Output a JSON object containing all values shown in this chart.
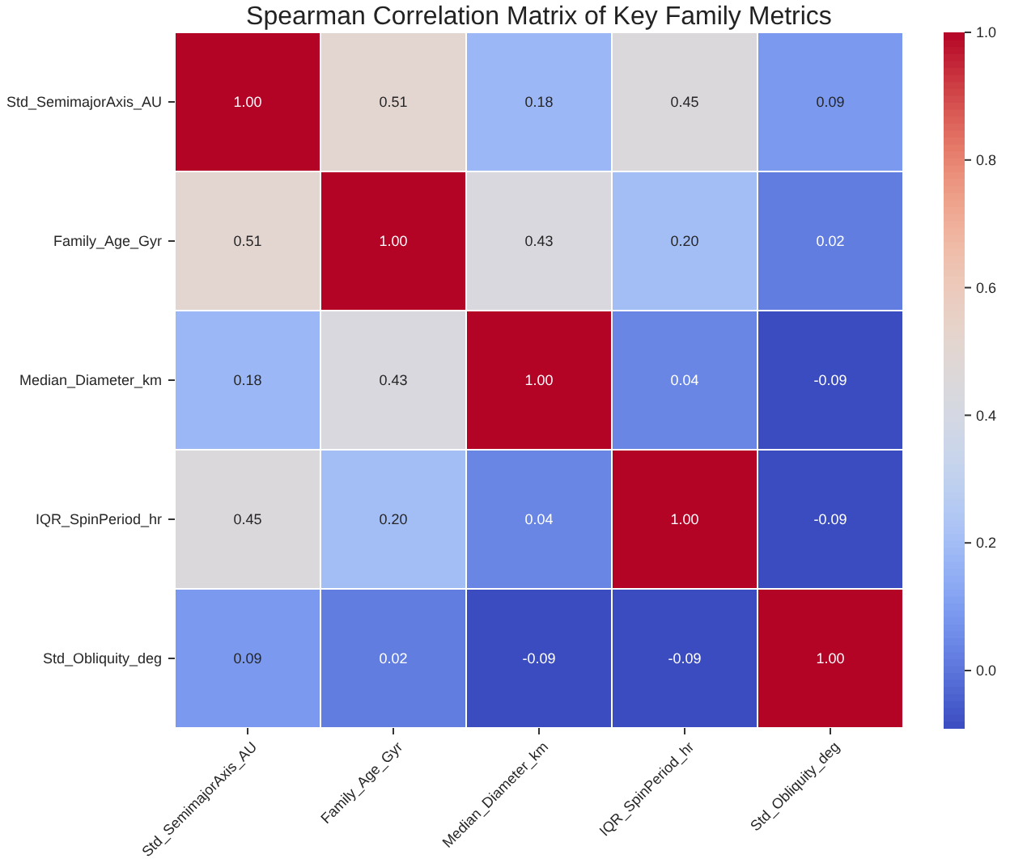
{
  "chart_data": {
    "type": "heatmap",
    "title": "Spearman Correlation Matrix of Key Family Metrics",
    "categories": [
      "Std_SemimajorAxis_AU",
      "Family_Age_Gyr",
      "Median_Diameter_km",
      "IQR_SpinPeriod_hr",
      "Std_Obliquity_deg"
    ],
    "y_categories": [
      "Std_SemimajorAxis_AU",
      "Family_Age_Gyr",
      "Median_Diameter_km",
      "IQR_SpinPeriod_hr",
      "Std_Obliquity_deg"
    ],
    "cells": [
      [
        1.0,
        0.51,
        0.18,
        0.45,
        0.09
      ],
      [
        0.51,
        1.0,
        0.43,
        0.2,
        0.02
      ],
      [
        0.18,
        0.43,
        1.0,
        0.04,
        -0.09
      ],
      [
        0.45,
        0.2,
        0.04,
        1.0,
        -0.09
      ],
      [
        0.09,
        0.02,
        -0.09,
        -0.09,
        1.0
      ]
    ],
    "cell_labels": [
      [
        "1.00",
        "0.51",
        "0.18",
        "0.45",
        "0.09"
      ],
      [
        "0.51",
        "1.00",
        "0.43",
        "0.20",
        "0.02"
      ],
      [
        "0.18",
        "0.43",
        "1.00",
        "0.04",
        "-0.09"
      ],
      [
        "0.45",
        "0.20",
        "0.04",
        "1.00",
        "-0.09"
      ],
      [
        "0.09",
        "0.02",
        "-0.09",
        "-0.09",
        "1.00"
      ]
    ],
    "data_labels": true,
    "clim": [
      -0.09,
      1.0
    ],
    "cticks": [
      {
        "value": 0,
        "label": "0.0"
      },
      {
        "value": 0.2,
        "label": "0.2"
      },
      {
        "value": 0.4,
        "label": "0.4"
      },
      {
        "value": 0.6,
        "label": "0.6"
      },
      {
        "value": 0.8,
        "label": "0.8"
      },
      {
        "value": 1,
        "label": "1.0"
      }
    ]
  }
}
